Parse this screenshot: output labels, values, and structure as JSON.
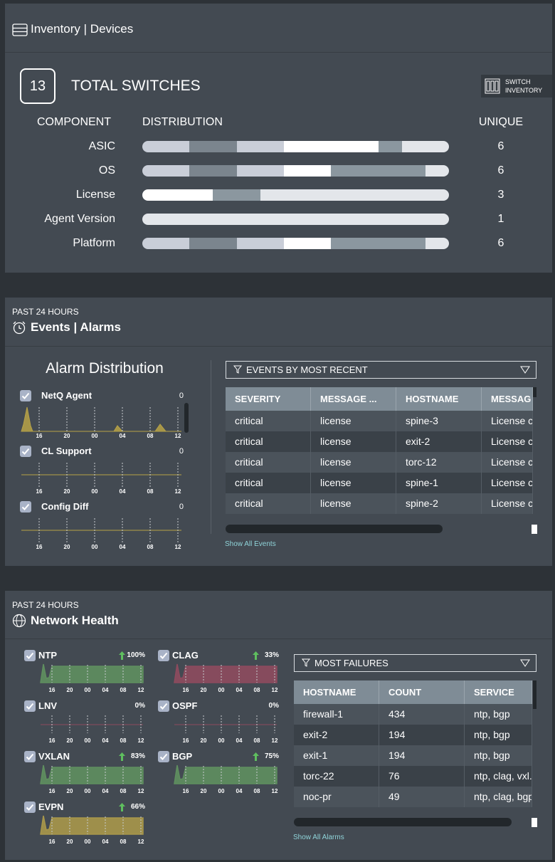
{
  "inventory": {
    "title": "Inventory | Devices",
    "total": 13,
    "total_label": "TOTAL SWITCHES",
    "button": [
      "SWITCH",
      "INVENTORY"
    ],
    "headers": [
      "COMPONENT",
      "DISTRIBUTION",
      "UNIQUE"
    ],
    "rows": [
      {
        "component": "ASIC",
        "unique": 6,
        "segments": [
          {
            "count": 2,
            "color": "#c9ced8"
          },
          {
            "count": 2,
            "color": "#7b858e"
          },
          {
            "count": 2,
            "color": "#c9ced8"
          },
          {
            "count": 4,
            "color": "#ffffff"
          },
          {
            "count": 1,
            "color": "#8b979f"
          },
          {
            "count": 2,
            "color": "#e3e6ea"
          }
        ]
      },
      {
        "component": "OS",
        "unique": 6,
        "segments": [
          {
            "count": 2,
            "color": "#c9ced8"
          },
          {
            "count": 2,
            "color": "#7b858e"
          },
          {
            "count": 2,
            "color": "#c9ced8"
          },
          {
            "count": 2,
            "color": "#ffffff"
          },
          {
            "count": 4,
            "color": "#8b979f"
          },
          {
            "count": 1,
            "color": "#e3e6ea"
          }
        ]
      },
      {
        "component": "License",
        "unique": 3,
        "segments": [
          {
            "count": 3,
            "color": "#ffffff"
          },
          {
            "count": 2,
            "color": "#8b979f"
          },
          {
            "count": 8,
            "color": "#e3e6ea"
          }
        ]
      },
      {
        "component": "Agent Version",
        "unique": 1,
        "segments": [
          {
            "count": 13,
            "color": "#e3e6ea"
          }
        ]
      },
      {
        "component": "Platform",
        "unique": 6,
        "segments": [
          {
            "count": 2,
            "color": "#c9ced8"
          },
          {
            "count": 2,
            "color": "#7b858e"
          },
          {
            "count": 2,
            "color": "#c9ced8"
          },
          {
            "count": 2,
            "color": "#ffffff"
          },
          {
            "count": 4,
            "color": "#8b979f"
          },
          {
            "count": 1,
            "color": "#e3e6ea"
          }
        ]
      }
    ]
  },
  "events": {
    "period": "PAST 24 HOURS",
    "title": "Events | Alarms",
    "chart_title": "Alarm Distribution",
    "time_labels": [
      "16",
      "20",
      "00",
      "04",
      "08",
      "12"
    ],
    "alarms": [
      {
        "name": "NetQ Agent",
        "count": 0,
        "color": "#b7a247",
        "shape": "spikes"
      },
      {
        "name": "CL Support",
        "count": 0,
        "color": "#b7a247",
        "shape": "flat"
      },
      {
        "name": "Config Diff",
        "count": 0,
        "color": "#b7a247",
        "shape": "flat"
      }
    ],
    "filter": "EVENTS BY MOST RECENT",
    "columns": [
      "SEVERITY",
      "MESSAGE ...",
      "HOSTNAME",
      "MESSAG"
    ],
    "rows": [
      [
        "critical",
        "license",
        "spine-3",
        "License c"
      ],
      [
        "critical",
        "license",
        "exit-2",
        "License c"
      ],
      [
        "critical",
        "license",
        "torc-12",
        "License c"
      ],
      [
        "critical",
        "license",
        "spine-1",
        "License c"
      ],
      [
        "critical",
        "license",
        "spine-2",
        "License c"
      ]
    ],
    "link": "Show All Events"
  },
  "health": {
    "period": "PAST 24 HOURS",
    "title": "Network Health",
    "time_labels": [
      "16",
      "20",
      "00",
      "04",
      "08",
      "12"
    ],
    "services": [
      {
        "name": "NTP",
        "change": "100%",
        "trend": "up",
        "color": "#5f8f5f"
      },
      {
        "name": "CLAG",
        "change": "33%",
        "trend": "up",
        "color": "#8e4b5e"
      },
      {
        "name": "LNV",
        "change": "0%",
        "color": "#8e4b5e"
      },
      {
        "name": "OSPF",
        "change": "0%",
        "color": "#8e4b5e"
      },
      {
        "name": "VXLAN",
        "change": "83%",
        "trend": "up",
        "color": "#5f8f5f"
      },
      {
        "name": "BGP",
        "change": "75%",
        "trend": "up",
        "color": "#5f8f5f"
      },
      {
        "name": "EVPN",
        "change": "66%",
        "trend": "up",
        "color": "#a8974a"
      }
    ],
    "filter": "MOST FAILURES",
    "columns": [
      "HOSTNAME",
      "COUNT",
      "SERVICE"
    ],
    "rows": [
      [
        "firewall-1",
        434,
        "ntp, bgp"
      ],
      [
        "exit-2",
        194,
        "ntp, bgp"
      ],
      [
        "exit-1",
        194,
        "ntp, bgp"
      ],
      [
        "torc-22",
        76,
        "ntp, clag, vxl."
      ],
      [
        "noc-pr",
        49,
        "ntp, clag, bgp"
      ]
    ],
    "link": "Show All Alarms"
  }
}
